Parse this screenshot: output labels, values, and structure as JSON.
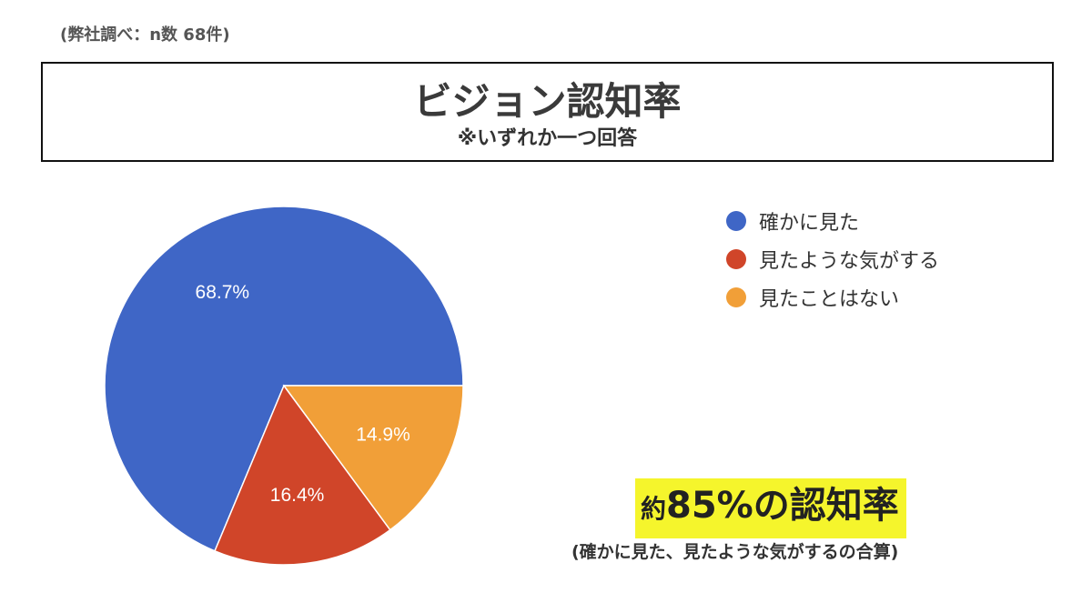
{
  "source_note": "(弊社調べ：n数 68件)",
  "title": "ビジョン認知率",
  "subtitle": "※いずれか一つ回答",
  "chart_data": {
    "type": "pie",
    "title": "ビジョン認知率",
    "subtitle": "※いずれか一つ回答",
    "legend_position": "right",
    "slices": [
      {
        "label": "確かに見た",
        "value": 68.7,
        "display": "68.7%",
        "color": "#3f66c6"
      },
      {
        "label": "見たような気がする",
        "value": 16.4,
        "display": "16.4%",
        "color": "#d04529"
      },
      {
        "label": "見たことはない",
        "value": 14.9,
        "display": "14.9%",
        "color": "#f19f38"
      }
    ]
  },
  "callout": {
    "prefix": "約",
    "main": "85%の認知率",
    "highlight_color": "#f5f52c"
  },
  "footnote": "(確かに見た、見たような気がするの合算)"
}
